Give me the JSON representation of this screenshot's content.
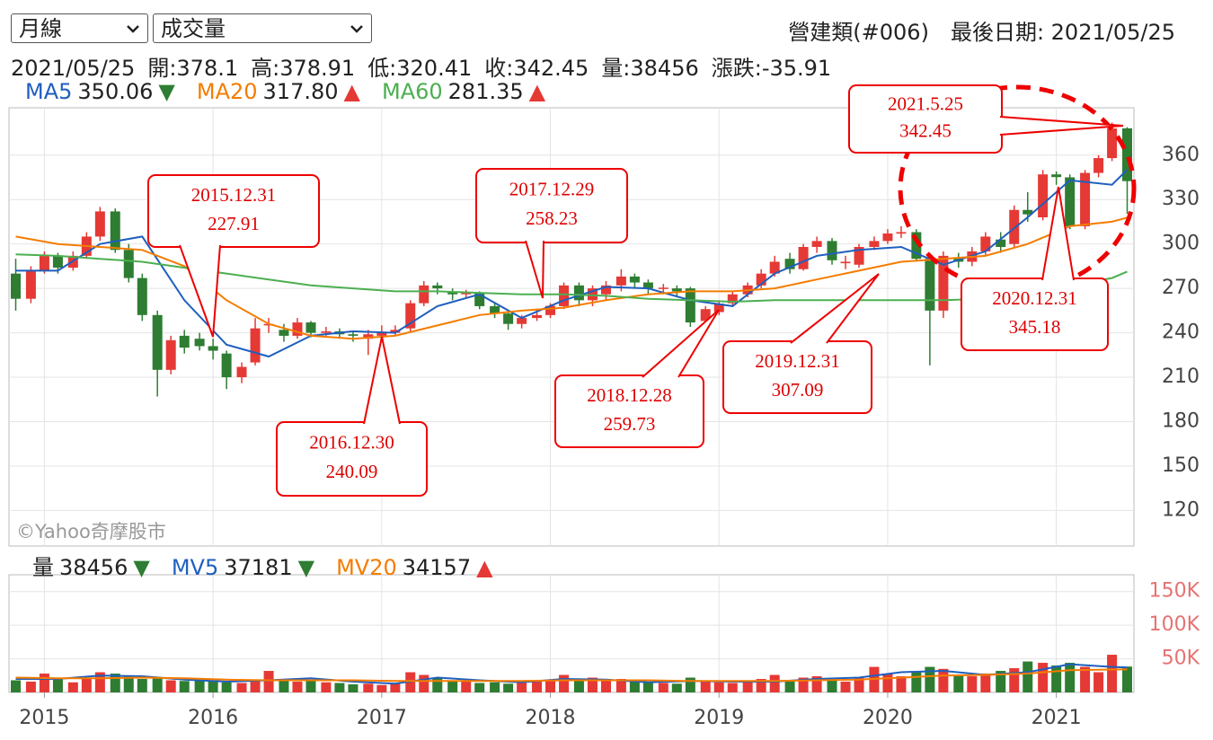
{
  "controls": {
    "period": "月線",
    "indicator": "成交量"
  },
  "header": {
    "index_name": "營建類(#006)",
    "last_date": "最後日期: 2021/05/25"
  },
  "info": [
    "2021/05/25",
    "開:378.1",
    "高:378.91",
    "低:320.41",
    "收:342.45",
    "量:38456",
    "漲跌:-35.91"
  ],
  "chart_data": [
    {
      "type": "candlestick",
      "watermark": "©Yahoo奇摩股市",
      "up_color": "#e53935",
      "down_color": "#2e7d32",
      "xlim": [
        2014.79,
        2021.46
      ],
      "ylim": [
        96,
        392
      ],
      "yticks": [
        120,
        150,
        180,
        210,
        240,
        270,
        300,
        330,
        360
      ],
      "grid": true,
      "x": [
        2014.83,
        2014.92,
        2015.0,
        2015.08,
        2015.17,
        2015.25,
        2015.33,
        2015.42,
        2015.5,
        2015.58,
        2015.67,
        2015.75,
        2015.83,
        2015.92,
        2016.0,
        2016.08,
        2016.17,
        2016.25,
        2016.33,
        2016.42,
        2016.5,
        2016.58,
        2016.67,
        2016.75,
        2016.83,
        2016.92,
        2017.0,
        2017.08,
        2017.17,
        2017.25,
        2017.33,
        2017.42,
        2017.5,
        2017.58,
        2017.67,
        2017.75,
        2017.83,
        2017.92,
        2018.0,
        2018.08,
        2018.17,
        2018.25,
        2018.33,
        2018.42,
        2018.5,
        2018.58,
        2018.67,
        2018.75,
        2018.83,
        2018.92,
        2019.0,
        2019.08,
        2019.17,
        2019.25,
        2019.33,
        2019.42,
        2019.5,
        2019.58,
        2019.67,
        2019.75,
        2019.83,
        2019.92,
        2020.0,
        2020.08,
        2020.17,
        2020.25,
        2020.33,
        2020.42,
        2020.5,
        2020.58,
        2020.67,
        2020.75,
        2020.83,
        2020.92,
        2021.0,
        2021.08,
        2021.17,
        2021.25,
        2021.33,
        2021.42
      ],
      "open": [
        280,
        263,
        282,
        292,
        284,
        292,
        305,
        322,
        296,
        277,
        252,
        215,
        238,
        236,
        231,
        226,
        210,
        220,
        245,
        242,
        238,
        247,
        240,
        241,
        239,
        236,
        238,
        240,
        243,
        260,
        272,
        268,
        266,
        267,
        258,
        253,
        246,
        250,
        252,
        258,
        272,
        262,
        266,
        272,
        278,
        274,
        270,
        270,
        270,
        248,
        254,
        260,
        266,
        272,
        280,
        290,
        283,
        298,
        302,
        287,
        286,
        298,
        302,
        307,
        308,
        290,
        255,
        290,
        288,
        295,
        303,
        300,
        323,
        318,
        347,
        345,
        312,
        348,
        358,
        378.1
      ],
      "high": [
        290,
        285,
        295,
        294,
        295,
        308,
        325,
        324,
        300,
        280,
        255,
        238,
        242,
        240,
        236,
        228,
        220,
        250,
        250,
        246,
        250,
        248,
        244,
        243,
        241,
        242,
        245,
        245,
        262,
        275,
        274,
        270,
        269,
        268,
        260,
        255,
        252,
        256,
        260,
        274,
        274,
        272,
        275,
        283,
        280,
        276,
        273,
        272,
        271,
        258,
        262,
        268,
        274,
        283,
        292,
        294,
        300,
        305,
        304,
        292,
        300,
        305,
        310,
        312,
        310,
        292,
        295,
        294,
        298,
        308,
        308,
        326,
        335,
        350,
        349,
        347,
        350,
        360,
        382,
        378.91
      ],
      "low": [
        255,
        260,
        280,
        280,
        282,
        290,
        302,
        294,
        274,
        248,
        197,
        212,
        226,
        228,
        222,
        202,
        206,
        218,
        240,
        234,
        236,
        237,
        238,
        236,
        234,
        225,
        234,
        238,
        240,
        258,
        266,
        262,
        263,
        256,
        250,
        242,
        243,
        248,
        250,
        256,
        258,
        258,
        262,
        268,
        270,
        266,
        266,
        264,
        244,
        246,
        252,
        258,
        264,
        270,
        278,
        280,
        282,
        294,
        286,
        283,
        284,
        296,
        300,
        304,
        288,
        218,
        250,
        284,
        285,
        292,
        294,
        298,
        315,
        316,
        340,
        310,
        310,
        345,
        356,
        320.41
      ],
      "close": [
        263,
        282,
        292,
        284,
        292,
        305,
        322,
        296,
        277,
        252,
        215,
        235,
        230,
        231,
        227.91,
        210,
        217,
        243,
        246,
        238,
        247,
        240,
        241,
        239,
        238,
        239,
        240.09,
        242,
        260,
        272,
        270,
        266,
        267,
        258,
        253,
        246,
        250,
        252,
        258.23,
        272,
        262,
        270,
        272,
        278,
        274,
        270,
        270.5,
        268,
        247,
        256,
        259.73,
        266,
        272,
        280,
        288,
        283,
        298,
        302,
        289,
        288,
        298,
        302,
        307.09,
        308,
        290,
        255,
        292,
        288,
        295,
        305,
        298,
        323,
        320,
        347,
        345.18,
        312,
        348,
        358,
        378,
        342.45
      ],
      "series": [
        {
          "name": "MA5",
          "color": "#1f5fbf",
          "legend_value": "350.06",
          "trend": "▼",
          "trend_color": "#2e7d32",
          "x": [
            2014.83,
            2015.08,
            2015.33,
            2015.58,
            2015.83,
            2016.08,
            2016.33,
            2016.58,
            2016.83,
            2017.08,
            2017.33,
            2017.58,
            2017.83,
            2018.08,
            2018.33,
            2018.58,
            2018.83,
            2019.08,
            2019.33,
            2019.58,
            2019.83,
            2020.08,
            2020.33,
            2020.58,
            2020.83,
            2021.08,
            2021.33,
            2021.42
          ],
          "values": [
            282,
            282,
            300,
            305,
            262,
            232,
            224,
            238,
            241,
            240,
            258,
            266,
            250,
            262,
            271,
            270,
            262,
            258,
            280,
            292,
            296,
            298,
            286,
            295,
            318,
            343,
            340,
            350.06
          ]
        },
        {
          "name": "MA20",
          "color": "#f57c00",
          "legend_value": "317.80",
          "trend": "▲",
          "trend_color": "#e53935",
          "x": [
            2014.83,
            2015.08,
            2015.33,
            2015.58,
            2015.83,
            2016.08,
            2016.33,
            2016.58,
            2016.83,
            2017.08,
            2017.33,
            2017.58,
            2017.83,
            2018.08,
            2018.33,
            2018.58,
            2018.83,
            2019.08,
            2019.33,
            2019.58,
            2019.83,
            2020.08,
            2020.33,
            2020.58,
            2020.83,
            2021.08,
            2021.33,
            2021.42
          ],
          "values": [
            305,
            300,
            298,
            296,
            285,
            262,
            246,
            238,
            236,
            238,
            245,
            252,
            255,
            257,
            262,
            266,
            268,
            268,
            270,
            276,
            282,
            288,
            290,
            292,
            300,
            312,
            315,
            317.8
          ]
        },
        {
          "name": "MA60",
          "color": "#4caf50",
          "legend_value": "281.35",
          "trend": "▲",
          "trend_color": "#e53935",
          "x": [
            2014.83,
            2015.08,
            2015.33,
            2015.58,
            2015.83,
            2016.08,
            2016.33,
            2016.58,
            2016.83,
            2017.08,
            2017.33,
            2017.58,
            2017.83,
            2018.08,
            2018.33,
            2018.58,
            2018.83,
            2019.08,
            2019.33,
            2019.58,
            2019.83,
            2020.08,
            2020.33,
            2020.58,
            2020.83,
            2021.08,
            2021.33,
            2021.42
          ],
          "values": [
            293,
            292,
            290,
            288,
            284,
            280,
            276,
            272,
            270,
            268,
            268,
            267,
            266,
            266,
            265,
            263,
            262,
            261,
            262,
            262,
            262,
            262,
            262,
            263,
            266,
            272,
            277,
            281.35
          ]
        }
      ],
      "annotations": [
        {
          "date": "2015.12.31",
          "value": 227.91
        },
        {
          "date": "2016.12.30",
          "value": 240.09
        },
        {
          "date": "2017.12.29",
          "value": 258.23
        },
        {
          "date": "2018.12.28",
          "value": 259.73
        },
        {
          "date": "2019.12.31",
          "value": 307.09
        },
        {
          "date": "2021.5.25",
          "value": 342.45
        },
        {
          "date": "2020.12.31",
          "value": 345.18
        }
      ]
    },
    {
      "type": "bar",
      "name": "量",
      "legend_value": "38456",
      "trend": "▼",
      "trend_color": "#2e7d32",
      "up_color": "#e53935",
      "down_color": "#2e7d32",
      "xlim": [
        2014.79,
        2021.46
      ],
      "xticks": [
        2015,
        2016,
        2017,
        2018,
        2019,
        2020,
        2021
      ],
      "ylim": [
        0,
        175000
      ],
      "yticks": [
        {
          "value": 50000,
          "label": "50K"
        },
        {
          "value": 100000,
          "label": "100K"
        },
        {
          "value": 150000,
          "label": "150K"
        }
      ],
      "tick_color": "#e57373",
      "grid": true,
      "values": [
        18000,
        16000,
        28000,
        20000,
        15000,
        22000,
        30000,
        28000,
        24000,
        20000,
        22000,
        18000,
        17000,
        19000,
        16000,
        15000,
        14000,
        18000,
        32000,
        20000,
        16000,
        18000,
        15000,
        14000,
        12000,
        13000,
        11000,
        14000,
        30000,
        26000,
        22000,
        18000,
        16000,
        14000,
        15000,
        13000,
        14000,
        16000,
        17000,
        26000,
        20000,
        22000,
        18000,
        20000,
        16000,
        15000,
        14000,
        13000,
        22000,
        16000,
        15000,
        14000,
        16000,
        20000,
        26000,
        18000,
        22000,
        24000,
        20000,
        16000,
        22000,
        38000,
        28000,
        24000,
        30000,
        38000,
        35000,
        26000,
        24000,
        28000,
        32000,
        36000,
        46000,
        44000,
        40000,
        44000,
        38000,
        30000,
        56000,
        38456
      ],
      "series": [
        {
          "name": "MV5",
          "color": "#1f5fbf",
          "legend_value": "37181",
          "trend": "▼",
          "trend_color": "#2e7d32",
          "x": [
            2014.83,
            2015.08,
            2015.33,
            2015.58,
            2015.83,
            2016.08,
            2016.33,
            2016.58,
            2016.83,
            2017.08,
            2017.33,
            2017.58,
            2017.83,
            2018.08,
            2018.33,
            2018.58,
            2018.83,
            2019.08,
            2019.33,
            2019.58,
            2019.83,
            2020.08,
            2020.33,
            2020.58,
            2020.83,
            2021.08,
            2021.33,
            2021.42
          ],
          "values": [
            20000,
            20000,
            25000,
            24000,
            19000,
            16000,
            18000,
            21000,
            16000,
            13000,
            22000,
            18000,
            15000,
            20000,
            19000,
            15000,
            17000,
            16000,
            16000,
            20000,
            22000,
            30000,
            32000,
            26000,
            30000,
            42000,
            38000,
            37181
          ]
        },
        {
          "name": "MV20",
          "color": "#f57c00",
          "legend_value": "34157",
          "trend": "▲",
          "trend_color": "#e53935",
          "x": [
            2014.83,
            2015.08,
            2015.33,
            2015.58,
            2015.83,
            2016.08,
            2016.33,
            2016.58,
            2016.83,
            2017.08,
            2017.33,
            2017.58,
            2017.83,
            2018.08,
            2018.33,
            2018.58,
            2018.83,
            2019.08,
            2019.33,
            2019.58,
            2019.83,
            2020.08,
            2020.33,
            2020.58,
            2020.83,
            2021.08,
            2021.33,
            2021.42
          ],
          "values": [
            22000,
            21000,
            21000,
            22000,
            21000,
            19000,
            18000,
            18000,
            18000,
            17000,
            17000,
            17000,
            17000,
            18000,
            18000,
            18000,
            17000,
            17000,
            17000,
            18000,
            19000,
            22000,
            25000,
            26000,
            28000,
            33000,
            34000,
            34157
          ]
        }
      ]
    }
  ]
}
